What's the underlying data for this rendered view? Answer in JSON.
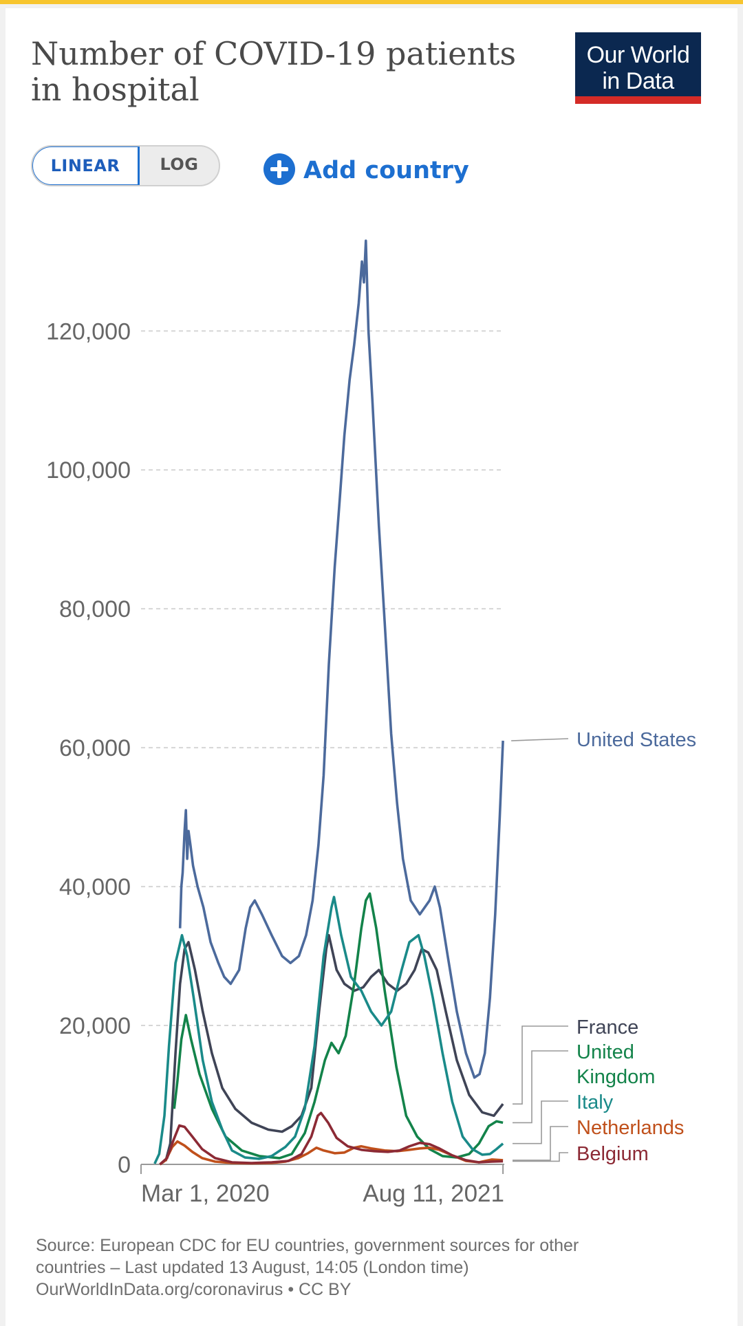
{
  "header": {
    "title_line1": "Number of COVID-19 patients",
    "title_line2": "in hospital",
    "logo_line1": "Our World",
    "logo_line2": "in Data"
  },
  "controls": {
    "linear_label": "LINEAR",
    "log_label": "LOG",
    "add_country_label": "Add country",
    "active_scale": "linear"
  },
  "colors": {
    "United States": "#4c6a9c",
    "France": "#3f4456",
    "United Kingdom": "#13834a",
    "Italy": "#1a8a89",
    "Netherlands": "#c0501b",
    "Belgium": "#8c2a35",
    "brand_navy": "#0b2850",
    "brand_red": "#d42b27",
    "accent_blue": "#1d6fd0"
  },
  "chart_data": {
    "type": "line",
    "title": "Number of COVID-19 patients in hospital",
    "ylim": [
      0,
      133000
    ],
    "yticks": [
      0,
      20000,
      40000,
      60000,
      80000,
      100000,
      120000
    ],
    "ytick_labels": [
      "0",
      "20,000",
      "40,000",
      "60,000",
      "80,000",
      "100,000",
      "120,000"
    ],
    "x_domain": [
      "2020-02-01",
      "2021-08-13"
    ],
    "xtick_labels": [
      "Mar 1, 2020",
      "Aug 11, 2021"
    ],
    "xticks": [
      "2020-02-01",
      "2021-08-11"
    ],
    "grid": "horizontal-dashed",
    "legend": "right-end-labels",
    "series": [
      {
        "name": "United States",
        "label_lines": [
          "United States"
        ],
        "points": [
          [
            "2020-04-01",
            34000
          ],
          [
            "2020-04-03",
            40000
          ],
          [
            "2020-04-05",
            42000
          ],
          [
            "2020-04-08",
            48000
          ],
          [
            "2020-04-10",
            51000
          ],
          [
            "2020-04-12",
            44000
          ],
          [
            "2020-04-14",
            48000
          ],
          [
            "2020-04-17",
            46000
          ],
          [
            "2020-04-21",
            43000
          ],
          [
            "2020-04-28",
            40000
          ],
          [
            "2020-05-07",
            37000
          ],
          [
            "2020-05-18",
            32000
          ],
          [
            "2020-05-30",
            29000
          ],
          [
            "2020-06-08",
            27000
          ],
          [
            "2020-06-18",
            26000
          ],
          [
            "2020-07-01",
            28000
          ],
          [
            "2020-07-11",
            34000
          ],
          [
            "2020-07-18",
            37000
          ],
          [
            "2020-07-25",
            38000
          ],
          [
            "2020-08-05",
            36000
          ],
          [
            "2020-08-20",
            33000
          ],
          [
            "2020-09-05",
            30000
          ],
          [
            "2020-09-18",
            29000
          ],
          [
            "2020-10-01",
            30000
          ],
          [
            "2020-10-12",
            33000
          ],
          [
            "2020-10-22",
            38000
          ],
          [
            "2020-10-31",
            46000
          ],
          [
            "2020-11-08",
            56000
          ],
          [
            "2020-11-16",
            72000
          ],
          [
            "2020-11-25",
            86000
          ],
          [
            "2020-12-03",
            96000
          ],
          [
            "2020-12-10",
            105000
          ],
          [
            "2020-12-18",
            113000
          ],
          [
            "2020-12-25",
            118000
          ],
          [
            "2021-01-01",
            124000
          ],
          [
            "2021-01-06",
            130000
          ],
          [
            "2021-01-09",
            127000
          ],
          [
            "2021-01-12",
            133000
          ],
          [
            "2021-01-16",
            120000
          ],
          [
            "2021-01-22",
            110000
          ],
          [
            "2021-02-01",
            92000
          ],
          [
            "2021-02-10",
            78000
          ],
          [
            "2021-02-20",
            62000
          ],
          [
            "2021-03-01",
            52000
          ],
          [
            "2021-03-10",
            44000
          ],
          [
            "2021-03-22",
            38000
          ],
          [
            "2021-04-05",
            36000
          ],
          [
            "2021-04-20",
            38000
          ],
          [
            "2021-04-28",
            40000
          ],
          [
            "2021-05-06",
            37000
          ],
          [
            "2021-05-18",
            30000
          ],
          [
            "2021-06-01",
            22000
          ],
          [
            "2021-06-15",
            16000
          ],
          [
            "2021-06-28",
            12500
          ],
          [
            "2021-07-06",
            13000
          ],
          [
            "2021-07-14",
            16000
          ],
          [
            "2021-07-22",
            24000
          ],
          [
            "2021-07-30",
            36000
          ],
          [
            "2021-08-06",
            50000
          ],
          [
            "2021-08-11",
            61000
          ]
        ]
      },
      {
        "name": "France",
        "label_lines": [
          "France"
        ],
        "points": [
          [
            "2020-03-10",
            500
          ],
          [
            "2020-03-17",
            3000
          ],
          [
            "2020-03-25",
            16000
          ],
          [
            "2020-04-01",
            26000
          ],
          [
            "2020-04-08",
            31000
          ],
          [
            "2020-04-14",
            32000
          ],
          [
            "2020-04-24",
            28000
          ],
          [
            "2020-05-06",
            22000
          ],
          [
            "2020-05-20",
            16000
          ],
          [
            "2020-06-05",
            11000
          ],
          [
            "2020-06-25",
            8000
          ],
          [
            "2020-07-20",
            6000
          ],
          [
            "2020-08-15",
            5000
          ],
          [
            "2020-09-05",
            4700
          ],
          [
            "2020-09-20",
            5500
          ],
          [
            "2020-10-05",
            7000
          ],
          [
            "2020-10-20",
            11000
          ],
          [
            "2020-11-01",
            22000
          ],
          [
            "2020-11-12",
            31000
          ],
          [
            "2020-11-16",
            33000
          ],
          [
            "2020-11-28",
            28000
          ],
          [
            "2020-12-10",
            26000
          ],
          [
            "2020-12-25",
            25000
          ],
          [
            "2021-01-08",
            25500
          ],
          [
            "2021-01-20",
            27000
          ],
          [
            "2021-02-01",
            28000
          ],
          [
            "2021-02-15",
            26000
          ],
          [
            "2021-03-01",
            25000
          ],
          [
            "2021-03-15",
            26000
          ],
          [
            "2021-03-28",
            28000
          ],
          [
            "2021-04-08",
            31000
          ],
          [
            "2021-04-18",
            30500
          ],
          [
            "2021-05-01",
            28000
          ],
          [
            "2021-05-15",
            22000
          ],
          [
            "2021-06-01",
            15000
          ],
          [
            "2021-06-20",
            10000
          ],
          [
            "2021-07-10",
            7500
          ],
          [
            "2021-07-28",
            7000
          ],
          [
            "2021-08-11",
            8700
          ]
        ]
      },
      {
        "name": "United Kingdom",
        "label_lines": [
          "United",
          "Kingdom"
        ],
        "points": [
          [
            "2020-03-23",
            8000
          ],
          [
            "2020-03-28",
            12000
          ],
          [
            "2020-04-03",
            18000
          ],
          [
            "2020-04-10",
            21500
          ],
          [
            "2020-04-18",
            18000
          ],
          [
            "2020-05-01",
            13000
          ],
          [
            "2020-05-20",
            8000
          ],
          [
            "2020-06-10",
            4000
          ],
          [
            "2020-07-05",
            2000
          ],
          [
            "2020-08-01",
            1200
          ],
          [
            "2020-09-01",
            900
          ],
          [
            "2020-09-20",
            1500
          ],
          [
            "2020-10-10",
            4500
          ],
          [
            "2020-10-25",
            9000
          ],
          [
            "2020-11-10",
            15000
          ],
          [
            "2020-11-20",
            17500
          ],
          [
            "2020-12-01",
            16000
          ],
          [
            "2020-12-12",
            18500
          ],
          [
            "2020-12-25",
            26000
          ],
          [
            "2021-01-05",
            34000
          ],
          [
            "2021-01-12",
            38000
          ],
          [
            "2021-01-18",
            39000
          ],
          [
            "2021-01-28",
            34000
          ],
          [
            "2021-02-10",
            25000
          ],
          [
            "2021-02-28",
            14000
          ],
          [
            "2021-03-15",
            7000
          ],
          [
            "2021-04-01",
            4000
          ],
          [
            "2021-04-20",
            2200
          ],
          [
            "2021-05-10",
            1200
          ],
          [
            "2021-06-01",
            1000
          ],
          [
            "2021-06-20",
            1500
          ],
          [
            "2021-07-05",
            3000
          ],
          [
            "2021-07-20",
            5500
          ],
          [
            "2021-08-01",
            6200
          ],
          [
            "2021-08-11",
            6000
          ]
        ]
      },
      {
        "name": "Italy",
        "label_lines": [
          "Italy"
        ],
        "points": [
          [
            "2020-02-22",
            100
          ],
          [
            "2020-02-29",
            1500
          ],
          [
            "2020-03-08",
            7000
          ],
          [
            "2020-03-15",
            17000
          ],
          [
            "2020-03-25",
            29000
          ],
          [
            "2020-04-04",
            33000
          ],
          [
            "2020-04-12",
            30000
          ],
          [
            "2020-04-22",
            24000
          ],
          [
            "2020-05-06",
            15000
          ],
          [
            "2020-05-20",
            9000
          ],
          [
            "2020-06-05",
            5000
          ],
          [
            "2020-06-20",
            2000
          ],
          [
            "2020-07-10",
            1000
          ],
          [
            "2020-08-01",
            800
          ],
          [
            "2020-08-20",
            1200
          ],
          [
            "2020-09-10",
            2500
          ],
          [
            "2020-09-25",
            4000
          ],
          [
            "2020-10-10",
            8000
          ],
          [
            "2020-10-25",
            17000
          ],
          [
            "2020-11-08",
            30000
          ],
          [
            "2020-11-20",
            37000
          ],
          [
            "2020-11-24",
            38500
          ],
          [
            "2020-12-05",
            33000
          ],
          [
            "2020-12-20",
            27000
          ],
          [
            "2021-01-05",
            25000
          ],
          [
            "2021-01-20",
            22000
          ],
          [
            "2021-02-05",
            20000
          ],
          [
            "2021-02-20",
            22000
          ],
          [
            "2021-03-08",
            28000
          ],
          [
            "2021-03-20",
            32000
          ],
          [
            "2021-04-03",
            33000
          ],
          [
            "2021-04-12",
            30000
          ],
          [
            "2021-04-25",
            24000
          ],
          [
            "2021-05-10",
            16000
          ],
          [
            "2021-05-25",
            9000
          ],
          [
            "2021-06-10",
            4000
          ],
          [
            "2021-06-25",
            2200
          ],
          [
            "2021-07-10",
            1400
          ],
          [
            "2021-07-22",
            1500
          ],
          [
            "2021-08-01",
            2200
          ],
          [
            "2021-08-11",
            3000
          ]
        ]
      },
      {
        "name": "Netherlands",
        "label_lines": [
          "Netherlands"
        ],
        "points": [
          [
            "2020-03-01",
            0
          ],
          [
            "2020-03-10",
            600
          ],
          [
            "2020-03-20",
            2500
          ],
          [
            "2020-03-28",
            3300
          ],
          [
            "2020-04-08",
            2700
          ],
          [
            "2020-04-20",
            1800
          ],
          [
            "2020-05-05",
            900
          ],
          [
            "2020-05-25",
            400
          ],
          [
            "2020-06-20",
            200
          ],
          [
            "2020-07-20",
            150
          ],
          [
            "2020-08-20",
            200
          ],
          [
            "2020-09-10",
            400
          ],
          [
            "2020-09-30",
            900
          ],
          [
            "2020-10-15",
            1600
          ],
          [
            "2020-10-28",
            2400
          ],
          [
            "2020-11-08",
            2000
          ],
          [
            "2020-11-25",
            1600
          ],
          [
            "2020-12-10",
            1700
          ],
          [
            "2020-12-25",
            2400
          ],
          [
            "2021-01-05",
            2600
          ],
          [
            "2021-01-20",
            2300
          ],
          [
            "2021-02-10",
            2000
          ],
          [
            "2021-03-01",
            1900
          ],
          [
            "2021-03-20",
            2100
          ],
          [
            "2021-04-05",
            2300
          ],
          [
            "2021-04-20",
            2400
          ],
          [
            "2021-05-05",
            2100
          ],
          [
            "2021-05-25",
            1300
          ],
          [
            "2021-06-15",
            500
          ],
          [
            "2021-07-05",
            300
          ],
          [
            "2021-07-25",
            700
          ],
          [
            "2021-08-11",
            600
          ]
        ]
      },
      {
        "name": "Belgium",
        "label_lines": [
          "Belgium"
        ],
        "points": [
          [
            "2020-03-01",
            0
          ],
          [
            "2020-03-12",
            900
          ],
          [
            "2020-03-22",
            3500
          ],
          [
            "2020-03-31",
            5600
          ],
          [
            "2020-04-08",
            5400
          ],
          [
            "2020-04-20",
            4000
          ],
          [
            "2020-05-05",
            2200
          ],
          [
            "2020-05-25",
            900
          ],
          [
            "2020-06-20",
            300
          ],
          [
            "2020-07-20",
            200
          ],
          [
            "2020-08-20",
            300
          ],
          [
            "2020-09-15",
            500
          ],
          [
            "2020-10-05",
            1500
          ],
          [
            "2020-10-20",
            4000
          ],
          [
            "2020-10-30",
            7000
          ],
          [
            "2020-11-04",
            7400
          ],
          [
            "2020-11-15",
            6000
          ],
          [
            "2020-11-28",
            3800
          ],
          [
            "2020-12-15",
            2600
          ],
          [
            "2021-01-05",
            2100
          ],
          [
            "2021-01-25",
            1900
          ],
          [
            "2021-02-15",
            1800
          ],
          [
            "2021-03-05",
            2000
          ],
          [
            "2021-03-20",
            2600
          ],
          [
            "2021-04-05",
            3100
          ],
          [
            "2021-04-20",
            2900
          ],
          [
            "2021-05-05",
            2300
          ],
          [
            "2021-05-25",
            1300
          ],
          [
            "2021-06-15",
            600
          ],
          [
            "2021-07-05",
            300
          ],
          [
            "2021-07-25",
            400
          ],
          [
            "2021-08-11",
            450
          ]
        ]
      }
    ]
  },
  "footer": {
    "source_line1": "Source: European CDC for EU countries, government sources for other",
    "source_line2": "countries – Last updated 13 August, 14:05 (London time)",
    "site_line": "OurWorldInData.org/coronavirus • CC BY"
  }
}
